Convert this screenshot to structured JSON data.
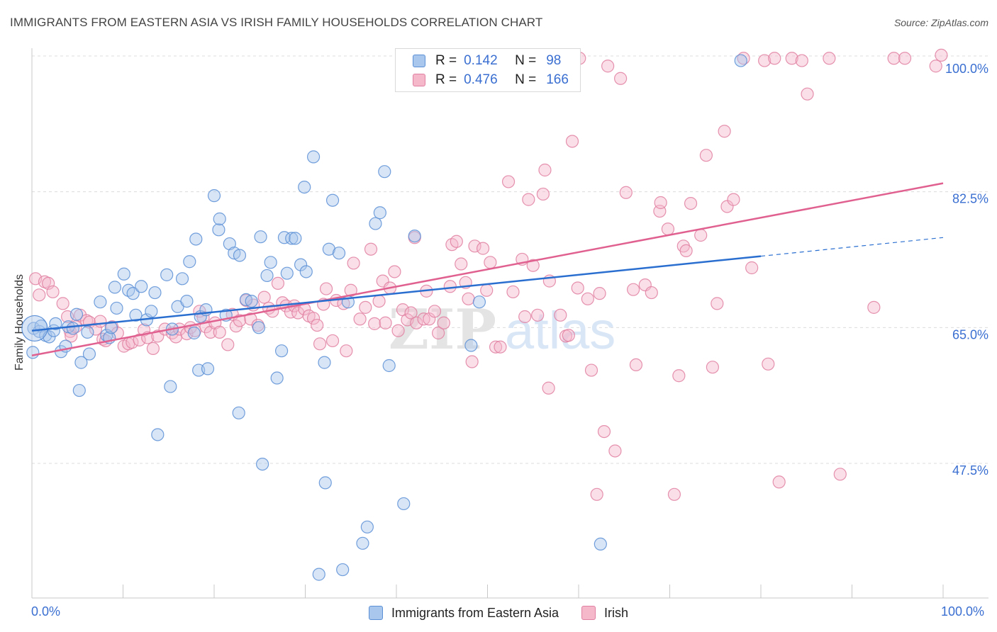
{
  "title": "IMMIGRANTS FROM EASTERN ASIA VS IRISH FAMILY HOUSEHOLDS CORRELATION CHART",
  "source": "Source: ZipAtlas.com",
  "watermark": {
    "zip": "ZIP",
    "atlas": "atlas"
  },
  "legend": {
    "r_label": "R =",
    "n_label": "N =",
    "entries": [
      {
        "r": "0.142",
        "n": "98"
      },
      {
        "r": "0.476",
        "n": "166"
      }
    ]
  },
  "colors": {
    "blue_fill": "#a9c6ec",
    "blue_stroke": "#5b8fd6",
    "blue_line": "#2a6fd0",
    "pink_fill": "#f5b8cb",
    "pink_stroke": "#e07fa1",
    "pink_line": "#e0618f",
    "tick_text": "#3a6fd1",
    "grid": "#dcdcdc"
  },
  "chart_data": {
    "type": "scatter",
    "title": "IMMIGRANTS FROM EASTERN ASIA VS IRISH FAMILY HOUSEHOLDS CORRELATION CHART",
    "xlabel": "",
    "ylabel": "Family Households",
    "xlim": [
      0,
      100
    ],
    "ylim": [
      31.5,
      101.5
    ],
    "x_tick_labels": [
      "0.0%",
      "100.0%"
    ],
    "y_ticks": [
      47.5,
      65.0,
      82.5,
      100.0
    ],
    "y_tick_labels": [
      "47.5%",
      "65.0%",
      "82.5%",
      "100.0%"
    ],
    "grid": true,
    "legend_position": "top-center",
    "series": [
      {
        "name": "Immigrants from Eastern Asia",
        "color": "#a9c6ec",
        "trend": {
          "x": [
            0,
            80
          ],
          "y": [
            64.6,
            74.2
          ],
          "dashed_extension": {
            "x": [
              80,
              100
            ],
            "y": [
              74.2,
              76.6
            ]
          }
        },
        "points": [
          [
            0.2,
            64.9
          ],
          [
            0.8,
            64.5
          ],
          [
            1.0,
            65.2
          ],
          [
            1.5,
            64.0
          ],
          [
            1.9,
            63.8
          ],
          [
            2.4,
            64.6
          ],
          [
            2.6,
            65.5
          ],
          [
            3.2,
            61.9
          ],
          [
            3.7,
            62.6
          ],
          [
            4.0,
            65.1
          ],
          [
            4.5,
            64.9
          ],
          [
            4.9,
            66.7
          ],
          [
            5.4,
            60.5
          ],
          [
            5.2,
            56.9
          ],
          [
            6.1,
            64.4
          ],
          [
            6.3,
            61.6
          ],
          [
            7.5,
            68.3
          ],
          [
            8.2,
            64.0
          ],
          [
            8.5,
            63.7
          ],
          [
            8.7,
            65.0
          ],
          [
            9.1,
            70.2
          ],
          [
            9.3,
            67.5
          ],
          [
            10.1,
            71.9
          ],
          [
            10.6,
            69.8
          ],
          [
            11.1,
            69.4
          ],
          [
            11.4,
            66.6
          ],
          [
            12.0,
            70.3
          ],
          [
            12.6,
            66.0
          ],
          [
            13.1,
            67.1
          ],
          [
            13.5,
            69.5
          ],
          [
            13.8,
            51.2
          ],
          [
            14.8,
            71.8
          ],
          [
            15.2,
            57.4
          ],
          [
            15.4,
            64.8
          ],
          [
            16.0,
            67.7
          ],
          [
            16.5,
            71.3
          ],
          [
            17.0,
            68.4
          ],
          [
            17.3,
            73.5
          ],
          [
            17.8,
            64.3
          ],
          [
            18.0,
            76.4
          ],
          [
            18.3,
            59.5
          ],
          [
            18.5,
            66.4
          ],
          [
            19.1,
            67.3
          ],
          [
            19.3,
            59.7
          ],
          [
            20.0,
            82.0
          ],
          [
            20.5,
            77.6
          ],
          [
            20.6,
            79.0
          ],
          [
            21.3,
            66.6
          ],
          [
            21.7,
            75.8
          ],
          [
            22.2,
            74.6
          ],
          [
            22.8,
            74.3
          ],
          [
            22.7,
            54.0
          ],
          [
            23.5,
            68.6
          ],
          [
            24.1,
            68.4
          ],
          [
            24.9,
            65.0
          ],
          [
            25.1,
            76.7
          ],
          [
            25.3,
            47.4
          ],
          [
            25.8,
            71.7
          ],
          [
            26.2,
            73.4
          ],
          [
            26.9,
            58.5
          ],
          [
            27.4,
            62.0
          ],
          [
            27.7,
            76.6
          ],
          [
            28.0,
            72.0
          ],
          [
            28.5,
            76.5
          ],
          [
            28.9,
            76.5
          ],
          [
            29.5,
            73.1
          ],
          [
            29.9,
            83.1
          ],
          [
            30.1,
            72.2
          ],
          [
            30.9,
            87.0
          ],
          [
            31.5,
            33.2
          ],
          [
            32.1,
            60.5
          ],
          [
            32.2,
            45.0
          ],
          [
            32.6,
            75.1
          ],
          [
            33.0,
            81.4
          ],
          [
            33.7,
            74.6
          ],
          [
            34.1,
            33.8
          ],
          [
            34.7,
            68.3
          ],
          [
            36.3,
            37.2
          ],
          [
            36.8,
            39.3
          ],
          [
            37.7,
            78.4
          ],
          [
            38.2,
            79.8
          ],
          [
            38.7,
            85.1
          ],
          [
            39.2,
            60.1
          ],
          [
            40.8,
            42.3
          ],
          [
            42.0,
            76.8
          ],
          [
            42.4,
            99.4
          ],
          [
            48.2,
            62.7
          ],
          [
            49.1,
            68.3
          ],
          [
            62.4,
            37.1
          ],
          [
            77.8,
            99.4
          ],
          [
            0.1,
            61.8
          ]
        ]
      },
      {
        "name": "Irish",
        "color": "#f5b8cb",
        "trend": {
          "x": [
            0,
            100
          ],
          "y": [
            61.4,
            83.6
          ]
        },
        "points": [
          [
            0.4,
            71.3
          ],
          [
            0.8,
            69.2
          ],
          [
            1.4,
            70.9
          ],
          [
            1.8,
            70.7
          ],
          [
            2.3,
            69.6
          ],
          [
            3.4,
            68.1
          ],
          [
            3.9,
            66.4
          ],
          [
            4.2,
            64.5
          ],
          [
            4.3,
            63.9
          ],
          [
            4.8,
            65.1
          ],
          [
            5.3,
            66.6
          ],
          [
            6.0,
            65.9
          ],
          [
            6.3,
            65.7
          ],
          [
            7.0,
            64.8
          ],
          [
            7.5,
            65.8
          ],
          [
            7.8,
            63.5
          ],
          [
            8.1,
            63.3
          ],
          [
            8.8,
            65.1
          ],
          [
            9.4,
            64.3
          ],
          [
            10.1,
            62.6
          ],
          [
            10.6,
            62.9
          ],
          [
            11.0,
            63.1
          ],
          [
            11.8,
            63.4
          ],
          [
            12.3,
            64.7
          ],
          [
            12.7,
            63.7
          ],
          [
            13.3,
            62.3
          ],
          [
            13.8,
            63.9
          ],
          [
            14.6,
            64.8
          ],
          [
            15.4,
            64.3
          ],
          [
            15.8,
            63.8
          ],
          [
            16.2,
            64.8
          ],
          [
            17.0,
            64.2
          ],
          [
            17.4,
            65.0
          ],
          [
            17.9,
            64.6
          ],
          [
            18.4,
            67.1
          ],
          [
            18.8,
            66.3
          ],
          [
            19.1,
            65.1
          ],
          [
            19.6,
            64.4
          ],
          [
            20.1,
            65.6
          ],
          [
            20.6,
            64.4
          ],
          [
            21.5,
            62.8
          ],
          [
            22.0,
            66.7
          ],
          [
            22.4,
            65.2
          ],
          [
            22.8,
            65.9
          ],
          [
            23.5,
            68.5
          ],
          [
            24.0,
            66.1
          ],
          [
            24.3,
            67.9
          ],
          [
            24.8,
            65.3
          ],
          [
            25.5,
            68.9
          ],
          [
            26.0,
            67.5
          ],
          [
            26.4,
            67.1
          ],
          [
            27.0,
            70.7
          ],
          [
            27.5,
            68.2
          ],
          [
            27.9,
            67.8
          ],
          [
            28.4,
            67.0
          ],
          [
            28.8,
            67.8
          ],
          [
            29.2,
            66.9
          ],
          [
            29.9,
            67.4
          ],
          [
            30.4,
            66.5
          ],
          [
            30.9,
            66.2
          ],
          [
            31.3,
            65.3
          ],
          [
            31.6,
            62.9
          ],
          [
            32.0,
            68.0
          ],
          [
            32.3,
            70.0
          ],
          [
            33.0,
            63.3
          ],
          [
            33.4,
            68.5
          ],
          [
            34.2,
            68.1
          ],
          [
            34.5,
            62.0
          ],
          [
            35.0,
            69.8
          ],
          [
            35.3,
            73.3
          ],
          [
            36.0,
            66.1
          ],
          [
            36.6,
            67.6
          ],
          [
            37.2,
            75.1
          ],
          [
            37.6,
            65.5
          ],
          [
            38.1,
            68.4
          ],
          [
            38.5,
            71.0
          ],
          [
            38.8,
            65.6
          ],
          [
            39.3,
            70.1
          ],
          [
            39.8,
            72.2
          ],
          [
            40.2,
            64.6
          ],
          [
            40.7,
            67.3
          ],
          [
            41.2,
            66.0
          ],
          [
            41.6,
            66.9
          ],
          [
            42.0,
            76.6
          ],
          [
            42.2,
            65.6
          ],
          [
            43.0,
            66.1
          ],
          [
            43.3,
            69.7
          ],
          [
            43.6,
            66.1
          ],
          [
            44.2,
            67.1
          ],
          [
            44.6,
            64.3
          ],
          [
            45.2,
            65.6
          ],
          [
            45.9,
            70.3
          ],
          [
            46.1,
            75.7
          ],
          [
            46.6,
            76.1
          ],
          [
            47.1,
            73.2
          ],
          [
            47.6,
            70.8
          ],
          [
            47.9,
            68.7
          ],
          [
            48.3,
            60.6
          ],
          [
            48.6,
            75.5
          ],
          [
            49.5,
            75.2
          ],
          [
            49.9,
            69.8
          ],
          [
            50.3,
            73.4
          ],
          [
            50.9,
            62.5
          ],
          [
            51.4,
            62.5
          ],
          [
            52.3,
            83.8
          ],
          [
            52.8,
            69.6
          ],
          [
            53.8,
            73.8
          ],
          [
            54.1,
            66.4
          ],
          [
            54.5,
            81.5
          ],
          [
            55.0,
            73.0
          ],
          [
            55.5,
            66.6
          ],
          [
            56.1,
            82.2
          ],
          [
            56.3,
            85.3
          ],
          [
            56.8,
            71.0
          ],
          [
            58.0,
            66.6
          ],
          [
            58.6,
            63.9
          ],
          [
            58.9,
            64.0
          ],
          [
            59.3,
            89.0
          ],
          [
            59.9,
            70.1
          ],
          [
            61.0,
            68.7
          ],
          [
            61.4,
            59.5
          ],
          [
            62.3,
            69.4
          ],
          [
            62.8,
            51.6
          ],
          [
            63.2,
            98.7
          ],
          [
            64.0,
            49.1
          ],
          [
            64.6,
            97.1
          ],
          [
            65.2,
            82.4
          ],
          [
            66.0,
            69.9
          ],
          [
            66.3,
            60.2
          ],
          [
            67.3,
            70.5
          ],
          [
            68.0,
            69.5
          ],
          [
            68.9,
            80.0
          ],
          [
            69.0,
            81.1
          ],
          [
            69.8,
            77.7
          ],
          [
            70.5,
            43.5
          ],
          [
            71.0,
            58.8
          ],
          [
            71.5,
            75.5
          ],
          [
            71.8,
            74.9
          ],
          [
            72.3,
            81.0
          ],
          [
            73.4,
            76.9
          ],
          [
            74.0,
            87.2
          ],
          [
            74.7,
            59.9
          ],
          [
            75.2,
            68.1
          ],
          [
            76.0,
            90.3
          ],
          [
            76.3,
            80.6
          ],
          [
            77.0,
            81.5
          ],
          [
            78.1,
            99.7
          ],
          [
            79.0,
            72.7
          ],
          [
            80.4,
            99.4
          ],
          [
            80.8,
            60.3
          ],
          [
            81.5,
            99.7
          ],
          [
            82.0,
            45.1
          ],
          [
            83.4,
            99.7
          ],
          [
            84.5,
            99.4
          ],
          [
            85.1,
            95.1
          ],
          [
            87.5,
            99.7
          ],
          [
            88.7,
            46.1
          ],
          [
            92.4,
            67.6
          ],
          [
            94.6,
            99.7
          ],
          [
            95.8,
            99.7
          ],
          [
            99.2,
            98.7
          ],
          [
            99.8,
            100.1
          ],
          [
            56.7,
            57.2
          ],
          [
            60.1,
            99.7
          ],
          [
            62.0,
            43.5
          ]
        ]
      }
    ]
  }
}
